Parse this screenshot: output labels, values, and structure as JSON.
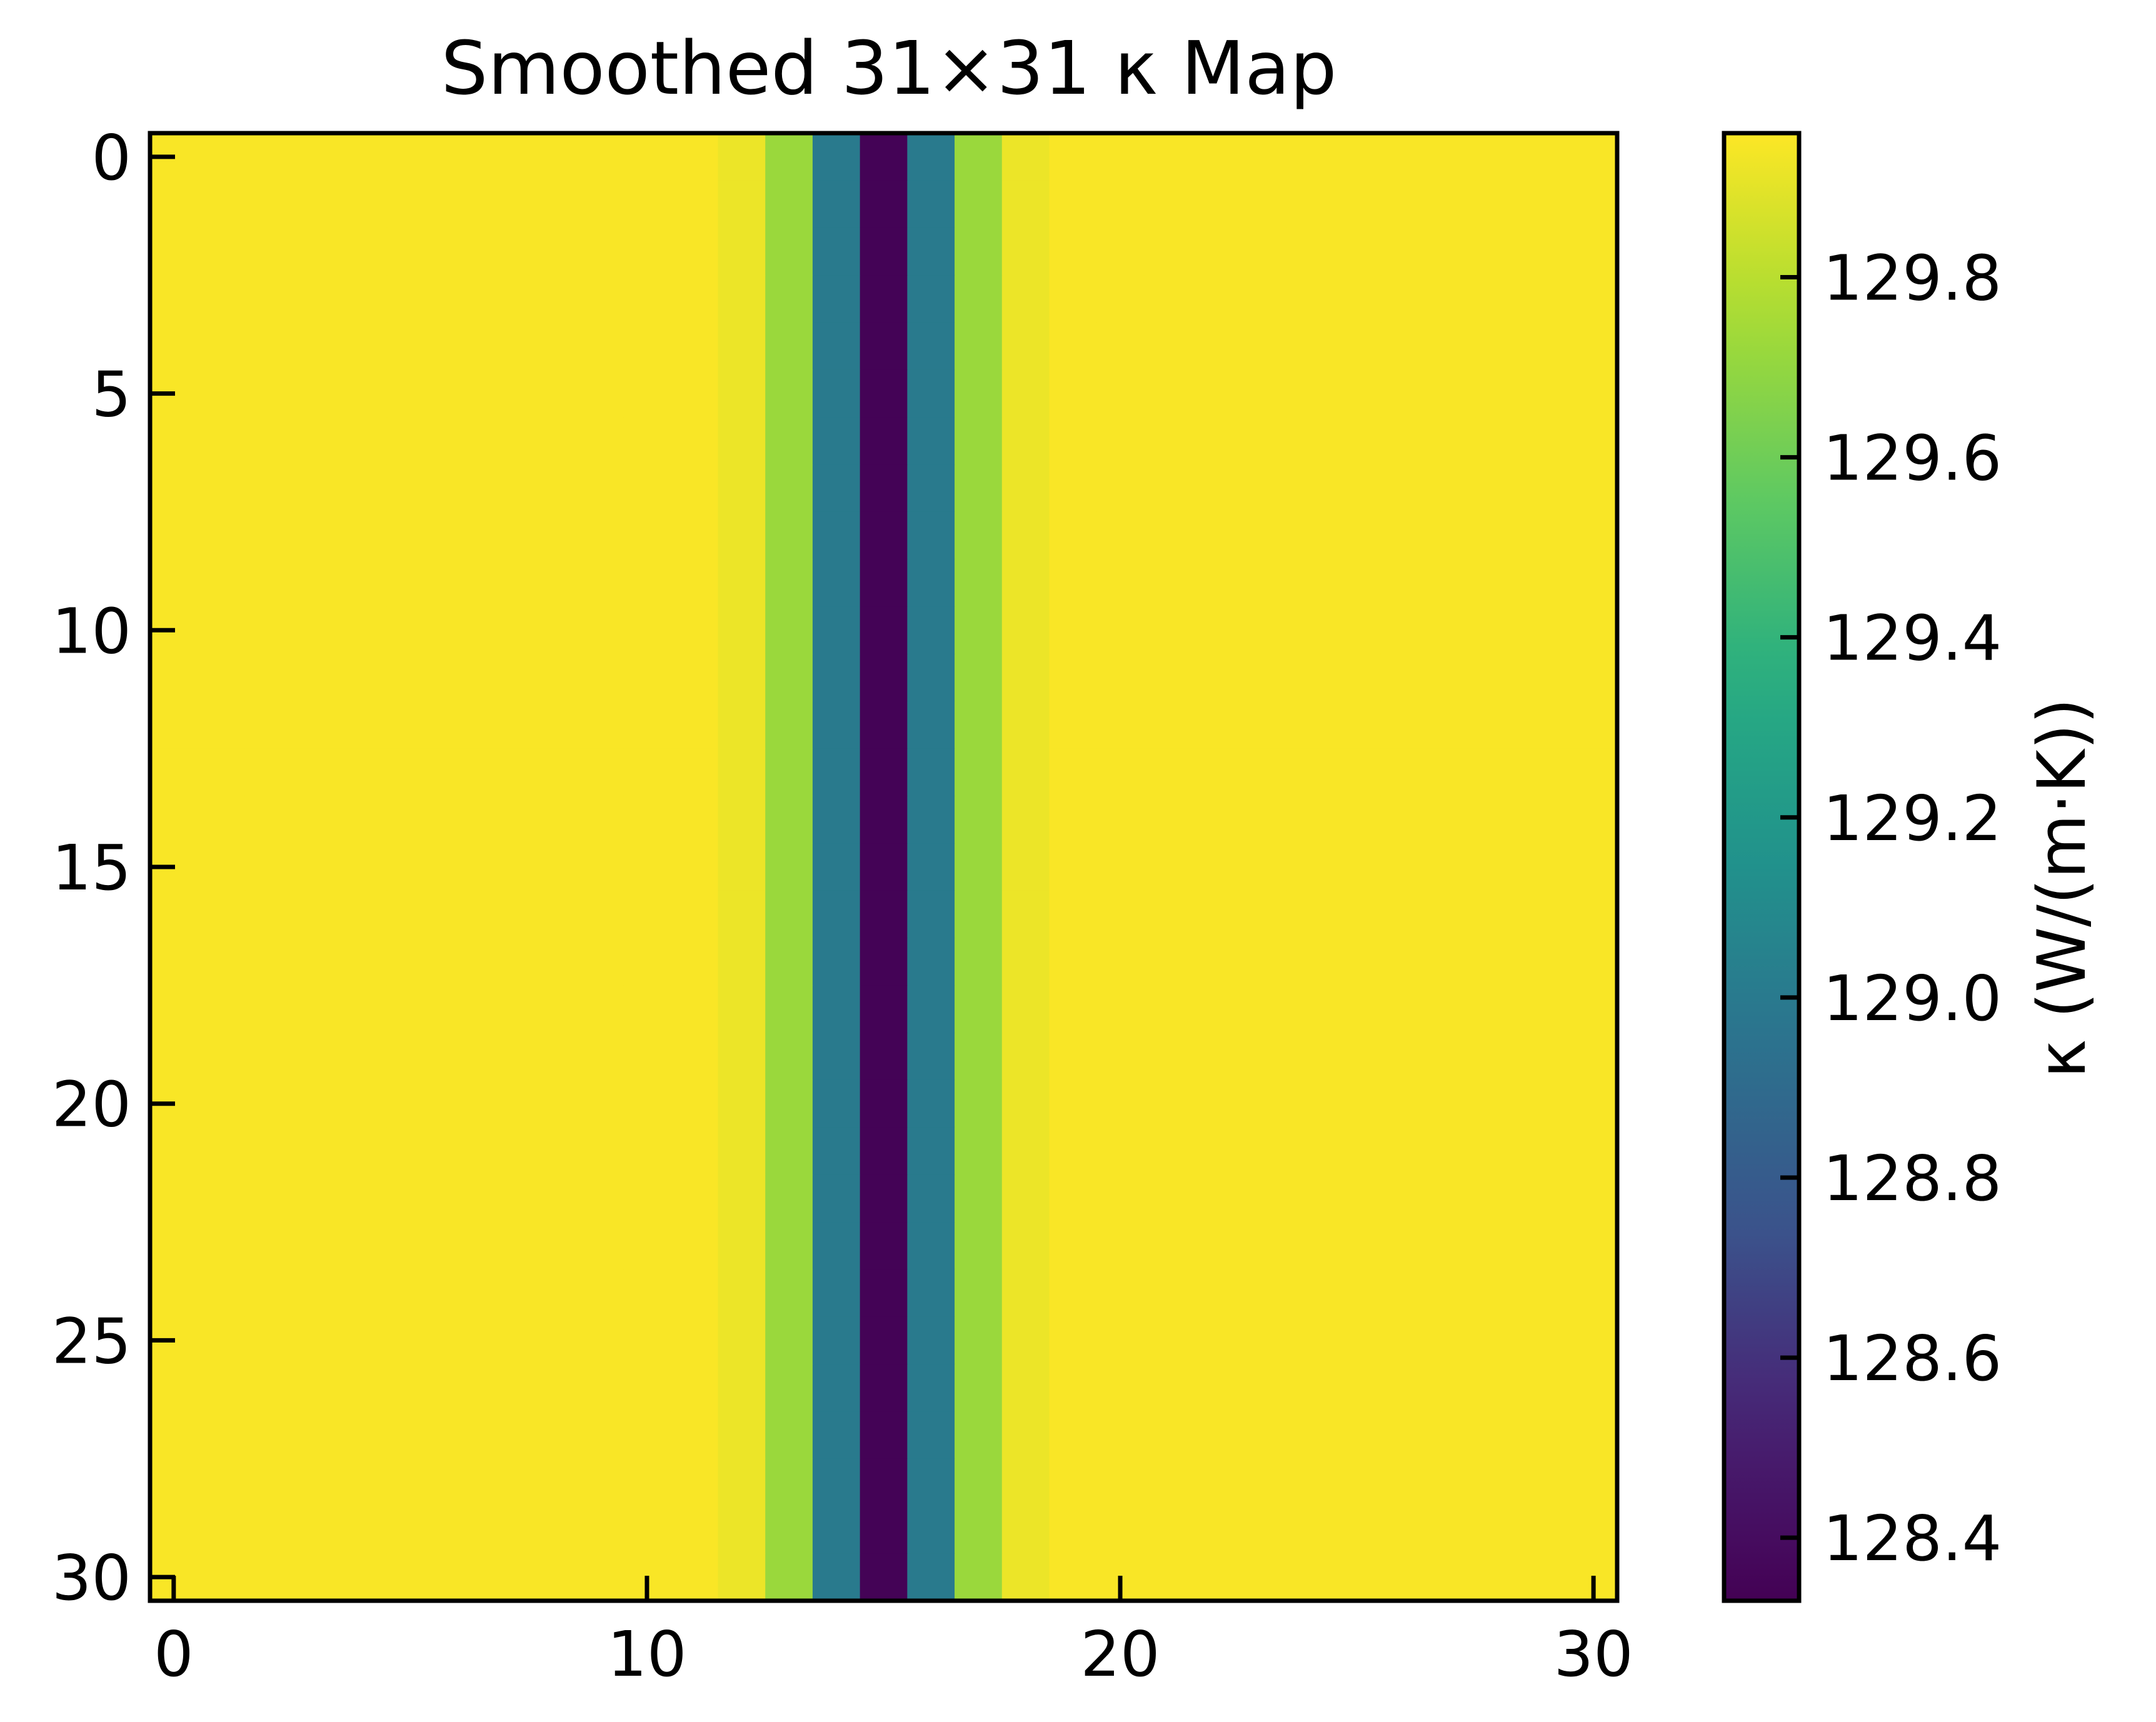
{
  "chart_data": {
    "type": "heatmap",
    "title": "Smoothed 31×31 κ Map",
    "xlabel": "",
    "ylabel": "",
    "grid": false,
    "x_range": [
      -0.5,
      30.5
    ],
    "y_range": [
      -0.5,
      30.5
    ],
    "y_inverted": true,
    "x_ticks": [
      0,
      10,
      20,
      30
    ],
    "y_ticks": [
      0,
      5,
      10,
      15,
      20,
      25,
      30
    ],
    "rows": 31,
    "columns": 31,
    "column_values": [
      129.95,
      129.95,
      129.95,
      129.95,
      129.95,
      129.95,
      129.95,
      129.95,
      129.95,
      129.95,
      129.95,
      129.95,
      129.92,
      129.72,
      129.0,
      128.34,
      129.0,
      129.72,
      129.92,
      129.95,
      129.95,
      129.95,
      129.95,
      129.95,
      129.95,
      129.95,
      129.95,
      129.95,
      129.95,
      129.95,
      129.95
    ],
    "note_rows": "all rows identical",
    "colorbar": {
      "label": "κ (W/(m·K))",
      "colormap": "viridis",
      "min": 128.33,
      "max": 129.96,
      "ticks": [
        128.4,
        128.6,
        128.8,
        129.0,
        129.2,
        129.4,
        129.6,
        129.8
      ]
    }
  }
}
